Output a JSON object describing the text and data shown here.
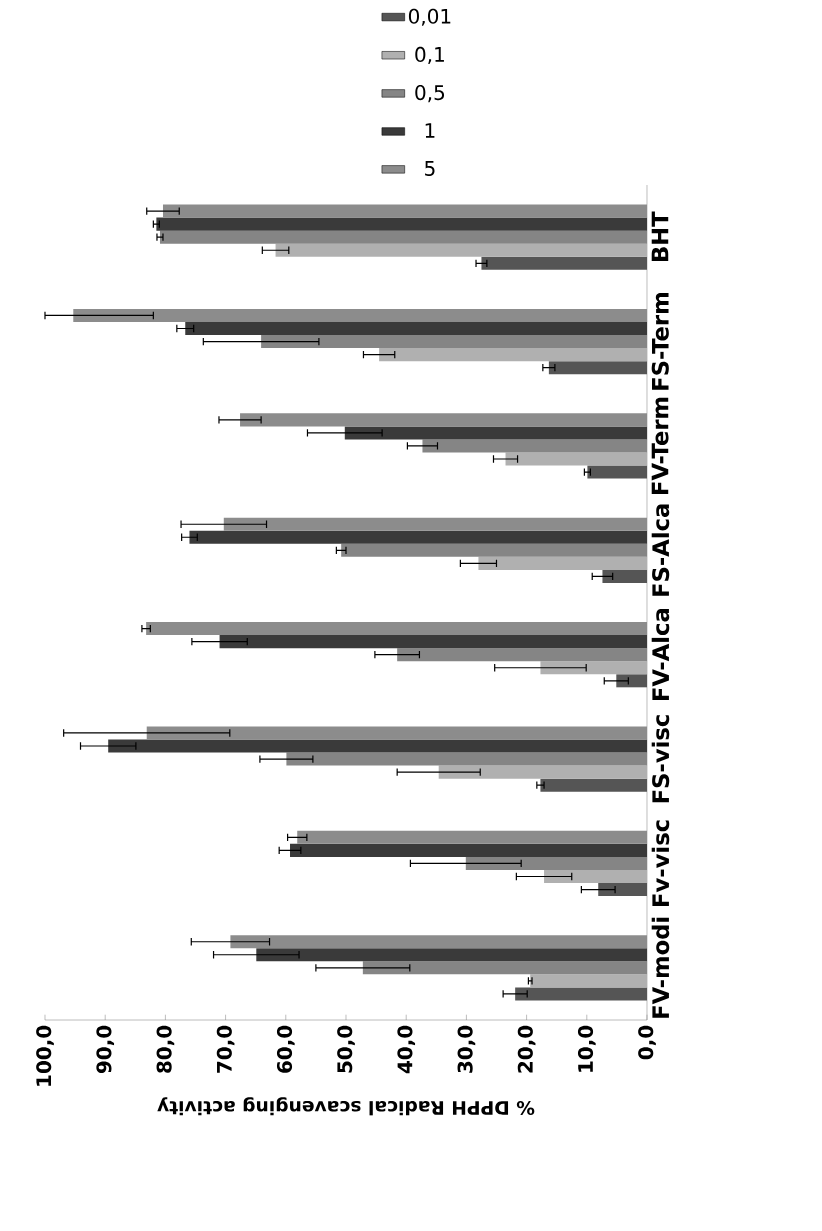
{
  "chart_data": {
    "type": "bar",
    "orientation": "horizontal",
    "xlabel": "% DPPH Radical scavenging activity",
    "categories": [
      "BHT",
      "FS-Term",
      "FV-Term",
      "FS-Alca",
      "FV-Alca",
      "FS-visc",
      "Fv-visc",
      "FV-modi"
    ],
    "xlim": [
      100,
      0
    ],
    "xticks": [
      {
        "value": 100,
        "label": "100,0"
      },
      {
        "value": 90,
        "label": "90,0"
      },
      {
        "value": 80,
        "label": "80,0"
      },
      {
        "value": 70,
        "label": "70,0"
      },
      {
        "value": 60,
        "label": "60,0"
      },
      {
        "value": 50,
        "label": "50,0"
      },
      {
        "value": 40,
        "label": "40,0"
      },
      {
        "value": 30,
        "label": "30,0"
      },
      {
        "value": 20,
        "label": "20,0"
      },
      {
        "value": 10,
        "label": "10,0"
      },
      {
        "value": 0,
        "label": "0,0"
      }
    ],
    "legend": "top",
    "grid": false,
    "series": [
      {
        "name": "0,01",
        "color": "#555555",
        "values": [
          27.5,
          16.3,
          9.9,
          7.4,
          5.1,
          17.7,
          8.1,
          21.9
        ],
        "errors": [
          0.9,
          1.0,
          0.5,
          1.7,
          2.0,
          0.6,
          2.8,
          2.0
        ]
      },
      {
        "name": "0,1",
        "color": "#b0b0b0",
        "values": [
          61.7,
          44.5,
          23.5,
          28.0,
          17.7,
          34.6,
          17.1,
          19.4
        ],
        "errors": [
          2.2,
          2.6,
          2.0,
          3.0,
          7.6,
          6.9,
          4.6,
          0.3
        ]
      },
      {
        "name": "0,5",
        "color": "#858585",
        "values": [
          80.9,
          64.1,
          37.3,
          50.8,
          41.5,
          59.9,
          30.1,
          47.2
        ],
        "errors": [
          0.5,
          9.6,
          2.5,
          0.8,
          3.7,
          4.4,
          9.2,
          7.8
        ]
      },
      {
        "name": "1",
        "color": "#3a3a3a",
        "values": [
          81.5,
          76.7,
          50.2,
          76.0,
          71.0,
          89.5,
          59.3,
          64.9
        ],
        "errors": [
          0.5,
          1.4,
          6.2,
          1.3,
          4.6,
          4.6,
          1.8,
          7.1
        ]
      },
      {
        "name": "5",
        "color": "#8c8c8c",
        "values": [
          80.4,
          95.3,
          67.6,
          70.3,
          83.2,
          83.1,
          58.1,
          69.2
        ],
        "errors": [
          2.7,
          [
            82.0,
            100.0
          ],
          3.5,
          7.1,
          0.7,
          13.8,
          1.6,
          6.5
        ]
      }
    ]
  }
}
